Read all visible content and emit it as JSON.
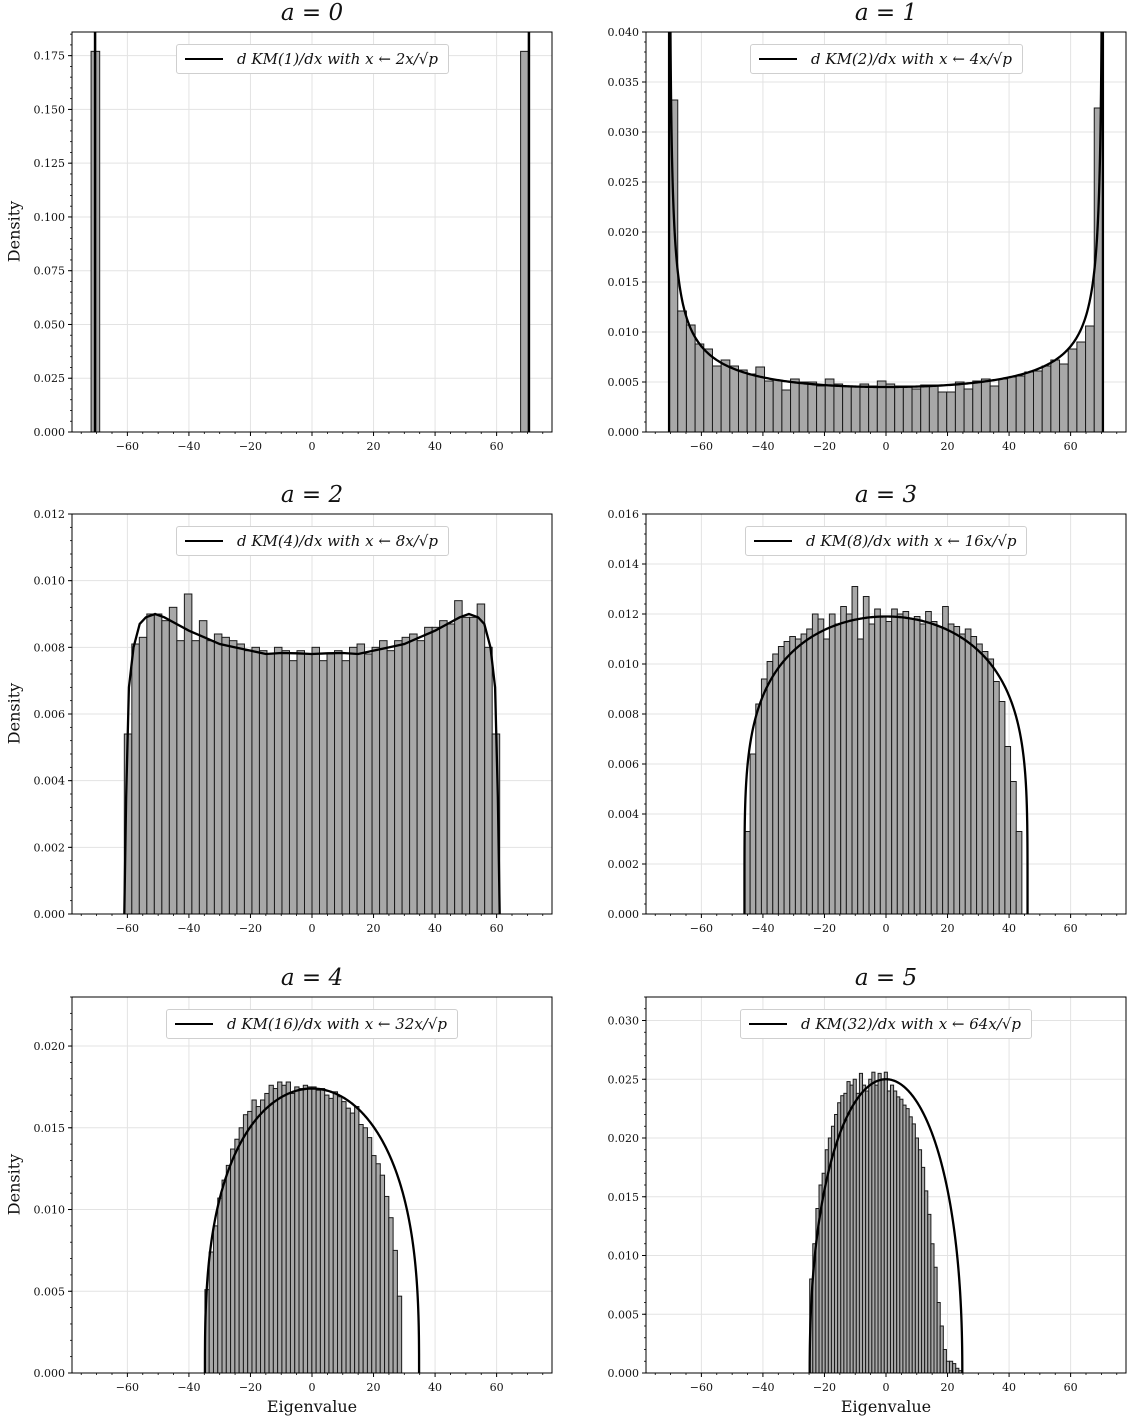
{
  "chart_data": [
    {
      "type": "bar",
      "title": "a = 0",
      "xlabel": "",
      "ylabel": "Density",
      "xlim": [
        -78,
        78
      ],
      "ylim": [
        0,
        0.186
      ],
      "yticks": [
        0.0,
        0.025,
        0.05,
        0.075,
        0.1,
        0.125,
        0.15,
        0.175
      ],
      "ytick_labels": [
        "0.000",
        "0.025",
        "0.050",
        "0.075",
        "0.100",
        "0.125",
        "0.150",
        "0.175"
      ],
      "xticks": [
        -60,
        -40,
        -20,
        0,
        20,
        40,
        60
      ],
      "xtick_labels": [
        "−60",
        "−40",
        "−20",
        "0",
        "20",
        "40",
        "60"
      ],
      "legend": "d KM(1)/dx with x ← 2x/√p",
      "legend_placement": "top-center",
      "grid": true,
      "bin_width": 2.8,
      "hist": {
        "start": -71.8,
        "values": [
          0.177
        ]
      },
      "hist2": {
        "start": 67.8,
        "values": [
          0.177
        ]
      },
      "curve": {
        "kind": "atoms",
        "atoms": [
          -70.5,
          70.5
        ]
      }
    },
    {
      "type": "bar",
      "title": "a = 1",
      "xlabel": "",
      "ylabel": "",
      "xlim": [
        -78,
        78
      ],
      "ylim": [
        0,
        0.04
      ],
      "yticks": [
        0.0,
        0.005,
        0.01,
        0.015,
        0.02,
        0.025,
        0.03,
        0.035,
        0.04
      ],
      "ytick_labels": [
        "0.000",
        "0.005",
        "0.010",
        "0.015",
        "0.020",
        "0.025",
        "0.030",
        "0.035",
        "0.040"
      ],
      "xticks": [
        -60,
        -40,
        -20,
        0,
        20,
        40,
        60
      ],
      "xtick_labels": [
        "−60",
        "−40",
        "−20",
        "0",
        "20",
        "40",
        "60"
      ],
      "legend": "d KM(2)/dx with x ← 4x/√p",
      "legend_placement": "top-center",
      "grid": true,
      "bin_width": 2.82,
      "hist": {
        "start": -70.5,
        "values": [
          0.0332,
          0.0121,
          0.0107,
          0.0088,
          0.0083,
          0.0066,
          0.0072,
          0.0066,
          0.0062,
          0.0058,
          0.0065,
          0.0051,
          0.0052,
          0.0042,
          0.0053,
          0.005,
          0.005,
          0.0046,
          0.0053,
          0.0048,
          0.0046,
          0.0046,
          0.0048,
          0.0046,
          0.0051,
          0.0048,
          0.0046,
          0.0046,
          0.0043,
          0.0047,
          0.0047,
          0.004,
          0.004,
          0.005,
          0.0043,
          0.0051,
          0.0053,
          0.0046,
          0.0053,
          0.0055,
          0.0056,
          0.006,
          0.0061,
          0.0066,
          0.0072,
          0.0068,
          0.0083,
          0.009,
          0.0106,
          0.0324
        ]
      },
      "curve": {
        "kind": "arcsine",
        "c": 70.5,
        "amp": 0.0045
      }
    },
    {
      "type": "bar",
      "title": "a = 2",
      "xlabel": "",
      "ylabel": "Density",
      "xlim": [
        -78,
        78
      ],
      "ylim": [
        0,
        0.012
      ],
      "yticks": [
        0.0,
        0.002,
        0.004,
        0.006,
        0.008,
        0.01,
        0.012
      ],
      "ytick_labels": [
        "0.000",
        "0.002",
        "0.004",
        "0.006",
        "0.008",
        "0.010",
        "0.012"
      ],
      "xticks": [
        -60,
        -40,
        -20,
        0,
        20,
        40,
        60
      ],
      "xtick_labels": [
        "−60",
        "−40",
        "−20",
        "0",
        "20",
        "40",
        "60"
      ],
      "legend": "d KM(4)/dx with x ← 8x/√p",
      "legend_placement": "top-center",
      "grid": true,
      "bin_width": 2.44,
      "hist": {
        "start": -61.0,
        "values": [
          0.0054,
          0.0081,
          0.0083,
          0.009,
          0.009,
          0.0088,
          0.0092,
          0.0082,
          0.0096,
          0.0082,
          0.0088,
          0.0082,
          0.0084,
          0.0083,
          0.0082,
          0.0081,
          0.0079,
          0.008,
          0.0079,
          0.0078,
          0.008,
          0.0079,
          0.0076,
          0.0079,
          0.0078,
          0.008,
          0.0076,
          0.0078,
          0.0079,
          0.0076,
          0.008,
          0.0081,
          0.0078,
          0.008,
          0.0082,
          0.0079,
          0.0082,
          0.0083,
          0.0084,
          0.0082,
          0.0086,
          0.0086,
          0.0088,
          0.0087,
          0.0094,
          0.0089,
          0.0089,
          0.0093,
          0.008,
          0.0054
        ]
      },
      "curve": {
        "kind": "points",
        "points": [
          [
            -61,
            0
          ],
          [
            -60.4,
            0.0035
          ],
          [
            -59.5,
            0.0068
          ],
          [
            -58,
            0.008
          ],
          [
            -56,
            0.0087
          ],
          [
            -54,
            0.0089
          ],
          [
            -51,
            0.009
          ],
          [
            -48,
            0.0089
          ],
          [
            -44,
            0.0087
          ],
          [
            -40,
            0.0085
          ],
          [
            -35,
            0.0083
          ],
          [
            -30,
            0.0081
          ],
          [
            -25,
            0.008
          ],
          [
            -20,
            0.0079
          ],
          [
            -15,
            0.0078
          ],
          [
            -10,
            0.00783
          ],
          [
            -5,
            0.00782
          ],
          [
            0,
            0.0078
          ],
          [
            5,
            0.00782
          ],
          [
            10,
            0.00783
          ],
          [
            15,
            0.0078
          ],
          [
            20,
            0.0079
          ],
          [
            25,
            0.008
          ],
          [
            30,
            0.0081
          ],
          [
            35,
            0.0083
          ],
          [
            40,
            0.0085
          ],
          [
            44,
            0.0087
          ],
          [
            48,
            0.0089
          ],
          [
            51,
            0.009
          ],
          [
            54,
            0.0089
          ],
          [
            56,
            0.0087
          ],
          [
            58,
            0.008
          ],
          [
            59.5,
            0.0068
          ],
          [
            60.4,
            0.0035
          ],
          [
            61,
            0
          ]
        ]
      }
    },
    {
      "type": "bar",
      "title": "a = 3",
      "xlabel": "",
      "ylabel": "",
      "xlim": [
        -78,
        78
      ],
      "ylim": [
        0,
        0.016
      ],
      "yticks": [
        0.0,
        0.002,
        0.004,
        0.006,
        0.008,
        0.01,
        0.012,
        0.014,
        0.016
      ],
      "ytick_labels": [
        "0.000",
        "0.002",
        "0.004",
        "0.006",
        "0.008",
        "0.010",
        "0.012",
        "0.014",
        "0.016"
      ],
      "xticks": [
        -60,
        -40,
        -20,
        0,
        20,
        40,
        60
      ],
      "xtick_labels": [
        "−60",
        "−40",
        "−20",
        "0",
        "20",
        "40",
        "60"
      ],
      "legend": "d KM(8)/dx with x ← 16x/√p",
      "legend_placement": "top-center",
      "grid": true,
      "bin_width": 1.84,
      "hist": {
        "start": -46.0,
        "values": [
          0.0033,
          0.0064,
          0.0084,
          0.0094,
          0.0101,
          0.0104,
          0.0107,
          0.0109,
          0.0111,
          0.011,
          0.0112,
          0.0114,
          0.012,
          0.0118,
          0.011,
          0.012,
          0.0116,
          0.0123,
          0.012,
          0.0131,
          0.011,
          0.0127,
          0.0116,
          0.0122,
          0.0119,
          0.0117,
          0.0122,
          0.012,
          0.0121,
          0.0118,
          0.0119,
          0.0116,
          0.0121,
          0.0117,
          0.0115,
          0.0123,
          0.0116,
          0.0115,
          0.0112,
          0.0114,
          0.0111,
          0.0108,
          0.0105,
          0.0102,
          0.0093,
          0.0085,
          0.0067,
          0.0053,
          0.0033
        ]
      },
      "curve": {
        "kind": "flat",
        "c": 46.0,
        "amp": 0.0119,
        "pow": 0.22
      }
    },
    {
      "type": "bar",
      "title": "a = 4",
      "xlabel": "Eigenvalue",
      "ylabel": "Density",
      "xlim": [
        -78,
        78
      ],
      "ylim": [
        0,
        0.023
      ],
      "yticks": [
        0.0,
        0.005,
        0.01,
        0.015,
        0.02
      ],
      "ytick_labels": [
        "0.000",
        "0.005",
        "0.010",
        "0.015",
        "0.020"
      ],
      "xticks": [
        -60,
        -40,
        -20,
        0,
        20,
        40,
        60
      ],
      "xtick_labels": [
        "−60",
        "−40",
        "−20",
        "0",
        "20",
        "40",
        "60"
      ],
      "legend": "d KM(16)/dx with x ← 32x/√p",
      "legend_placement": "top-center",
      "grid": true,
      "bin_width": 1.39,
      "hist": {
        "start": -34.8,
        "values": [
          0.0051,
          0.0074,
          0.009,
          0.0107,
          0.0118,
          0.0127,
          0.0137,
          0.0143,
          0.015,
          0.0158,
          0.016,
          0.0167,
          0.0163,
          0.0167,
          0.0171,
          0.0176,
          0.0174,
          0.0178,
          0.0176,
          0.0178,
          0.0171,
          0.0175,
          0.0174,
          0.0176,
          0.0175,
          0.0175,
          0.0173,
          0.0174,
          0.017,
          0.0168,
          0.0172,
          0.0169,
          0.0166,
          0.0162,
          0.0159,
          0.0163,
          0.0152,
          0.015,
          0.0144,
          0.0133,
          0.0128,
          0.0121,
          0.0108,
          0.0095,
          0.0075,
          0.0047
        ]
      },
      "curve": {
        "kind": "flat",
        "c": 34.8,
        "amp": 0.0174,
        "pow": 0.36
      }
    },
    {
      "type": "bar",
      "title": "a = 5",
      "xlabel": "Eigenvalue",
      "ylabel": "",
      "xlim": [
        -78,
        78
      ],
      "ylim": [
        0,
        0.032
      ],
      "yticks": [
        0.0,
        0.005,
        0.01,
        0.015,
        0.02,
        0.025,
        0.03
      ],
      "ytick_labels": [
        "0.000",
        "0.005",
        "0.010",
        "0.015",
        "0.020",
        "0.025",
        "0.030"
      ],
      "xticks": [
        -60,
        -40,
        -20,
        0,
        20,
        40,
        60
      ],
      "xtick_labels": [
        "−60",
        "−40",
        "−20",
        "0",
        "20",
        "40",
        "60"
      ],
      "legend": "d KM(32)/dx with x ← 64x/√p",
      "legend_placement": "top-center",
      "grid": true,
      "bin_width": 1.01,
      "hist": {
        "start": -24.8,
        "values": [
          0.008,
          0.011,
          0.014,
          0.016,
          0.017,
          0.019,
          0.02,
          0.021,
          0.022,
          0.023,
          0.0236,
          0.0238,
          0.0248,
          0.0245,
          0.025,
          0.0238,
          0.0255,
          0.0245,
          0.024,
          0.025,
          0.0256,
          0.0245,
          0.0255,
          0.025,
          0.0256,
          0.024,
          0.0245,
          0.024,
          0.0235,
          0.0233,
          0.0228,
          0.0225,
          0.0218,
          0.0212,
          0.02,
          0.019,
          0.0175,
          0.0155,
          0.0135,
          0.011,
          0.009,
          0.006,
          0.004,
          0.002,
          0.001,
          0.001,
          0.0008,
          0.0004,
          0.0002
        ]
      },
      "curve": {
        "kind": "flat",
        "c": 24.8,
        "amp": 0.025,
        "pow": 0.45
      }
    }
  ]
}
